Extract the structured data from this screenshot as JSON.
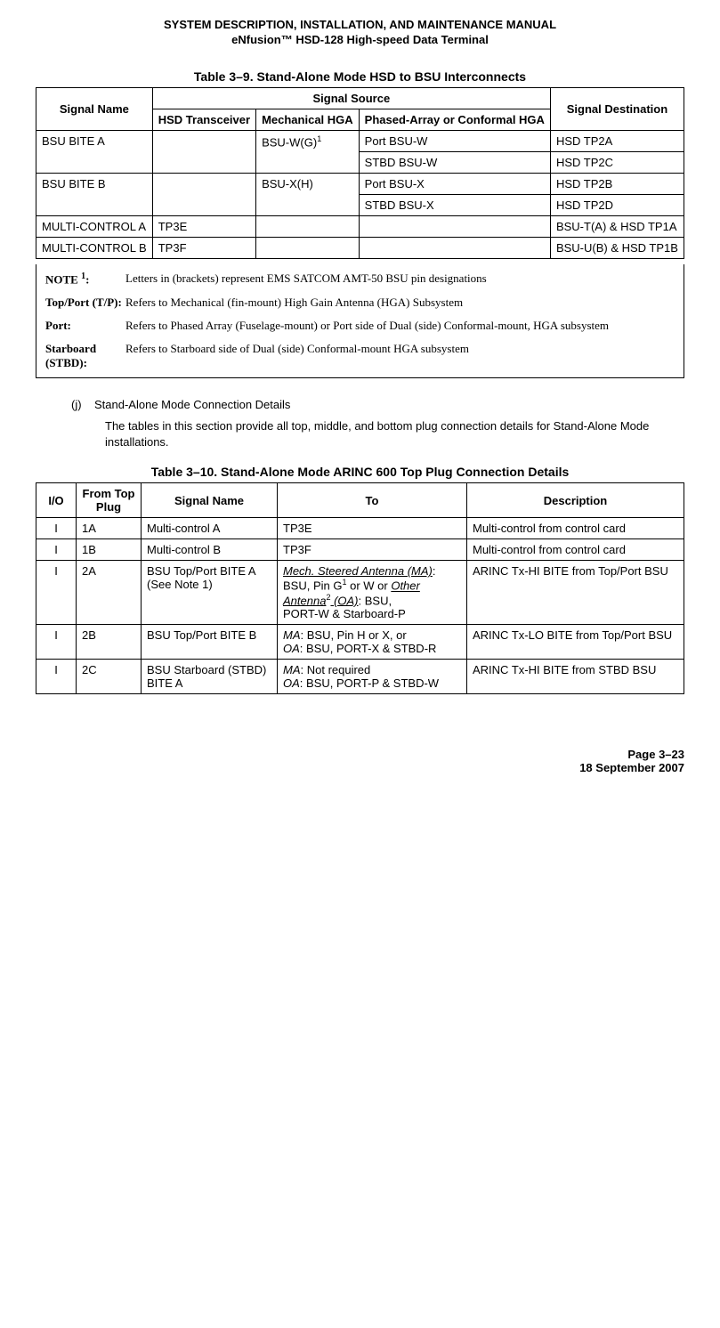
{
  "header": {
    "line1": "SYSTEM DESCRIPTION, INSTALLATION, AND MAINTENANCE MANUAL",
    "line2": "eNfusion™ HSD-128 High-speed Data Terminal"
  },
  "table1": {
    "caption": "Table 3–9. Stand-Alone Mode HSD to BSU Interconnects",
    "headers": {
      "signal_name": "Signal Name",
      "signal_source": "Signal Source",
      "hsd_transceiver": "HSD Transceiver",
      "mechanical_hga": "Mechanical HGA",
      "phased_array": "Phased-Array or Conformal HGA",
      "signal_destination": "Signal Destination"
    },
    "rows": [
      {
        "name": "BSU BITE A",
        "hsd": "",
        "mech": "BSU-W(G)",
        "note": "1",
        "phased": "Port BSU-W",
        "dest": "HSD TP2A",
        "rowspan_name": 2,
        "rowspan_mech": 2
      },
      {
        "phased": "STBD BSU-W",
        "dest": "HSD TP2C"
      },
      {
        "name": "BSU BITE B",
        "hsd": "",
        "mech": "BSU-X(H)",
        "phased": "Port BSU-X",
        "dest": "HSD TP2B",
        "rowspan_name": 2,
        "rowspan_mech": 2
      },
      {
        "phased": "STBD BSU-X",
        "dest": "HSD TP2D"
      },
      {
        "name": "MULTI-CONTROL A",
        "hsd": "TP3E",
        "mech": "",
        "phased": "",
        "dest": "BSU-T(A) & HSD TP1A"
      },
      {
        "name": "MULTI-CONTROL B",
        "hsd": "TP3F",
        "mech": "",
        "phased": "",
        "dest": "BSU-U(B) & HSD TP1B"
      }
    ],
    "notes": {
      "note1_label": "NOTE ",
      "note1_sup": "1",
      "note1_colon": ":",
      "note1_text": "Letters in (brackets) represent EMS SATCOM AMT-50 BSU pin designations",
      "tp_label": "Top/Port (T/P):",
      "tp_text": "Refers to Mechanical (fin-mount) High Gain Antenna (HGA) Subsystem",
      "port_label": "Port:",
      "port_text": "Refers to Phased Array (Fuselage-mount) or Port side of Dual (side) Conformal-mount, HGA subsystem",
      "stbd_label": "Starboard (STBD):",
      "stbd_text": "Refers to Starboard side of Dual (side) Conformal-mount HGA subsystem"
    }
  },
  "section_j": {
    "letter": "(j)",
    "title": "Stand-Alone Mode Connection Details",
    "body": "The tables in this section provide all top, middle, and bottom plug connection details for Stand-Alone Mode installations."
  },
  "table2": {
    "caption": "Table 3–10. Stand-Alone Mode ARINC 600 Top Plug Connection Details",
    "headers": {
      "io": "I/O",
      "from": "From Top Plug",
      "signal_name": "Signal Name",
      "to": "To",
      "description": "Description"
    },
    "rows": [
      {
        "io": "I",
        "from": "1A",
        "name": "Multi-control A",
        "to": "TP3E",
        "desc": "Multi-control from control card"
      },
      {
        "io": "I",
        "from": "1B",
        "name": "Multi-control B",
        "to": "TP3F",
        "desc": "Multi-control from control card"
      },
      {
        "io": "I",
        "from": "2A",
        "name_line1": "BSU Top/Port BITE A",
        "name_line2": "(See Note 1)",
        "to_ma": "Mech. Steered Antenna (MA)",
        "to_ma_rest": ": BSU, Pin G",
        "to_ma_sup": "1",
        "to_ma_rest2": " or W or ",
        "to_oa": "Other Antenna",
        "to_oa_sup": "2",
        "to_oa_rest": " (OA)",
        "to_oa_rest2": ": BSU,",
        "to_line3": "PORT-W & Starboard-P",
        "desc": "ARINC Tx-HI BITE from Top/Port BSU"
      },
      {
        "io": "I",
        "from": "2B",
        "name": "BSU Top/Port BITE B",
        "to_ma_prefix": "MA",
        "to_ma_rest": ": BSU, Pin H or X, or",
        "to_oa_prefix": "OA",
        "to_oa_rest": ": BSU, PORT-X & STBD-R",
        "desc": "ARINC Tx-LO BITE from Top/Port BSU"
      },
      {
        "io": "I",
        "from": "2C",
        "name": "BSU Starboard (STBD) BITE A",
        "to_ma_prefix": "MA",
        "to_ma_rest": ": Not required",
        "to_oa_prefix": "OA",
        "to_oa_rest": ": BSU, PORT-P & STBD-W",
        "desc": "ARINC Tx-HI BITE from STBD BSU"
      }
    ]
  },
  "footer": {
    "page": "Page 3–23",
    "date": "18 September 2007"
  }
}
